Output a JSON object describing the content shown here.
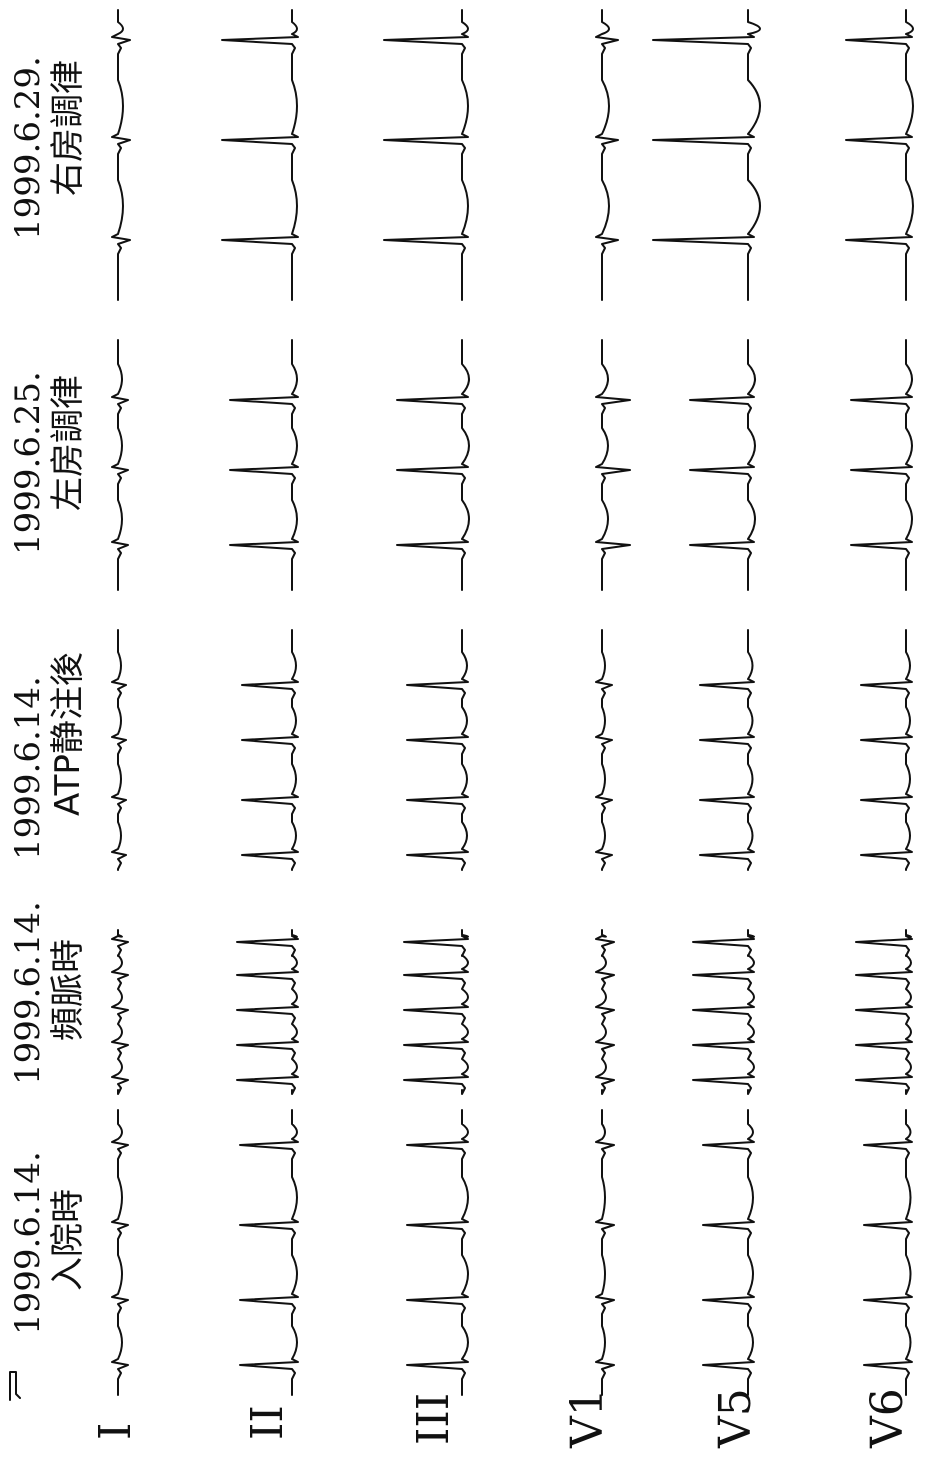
{
  "columns": [
    {
      "date": "1999.6.14.",
      "desc": "入院時",
      "rhythm": {
        "hr": 4,
        "type": "sinus"
      }
    },
    {
      "date": "1999.6.14.",
      "desc": "頻脈時",
      "rhythm": {
        "hr": 7,
        "type": "tachy"
      }
    },
    {
      "date": "1999.6.14.",
      "desc": "ATP静注後",
      "rhythm": {
        "hr": 5,
        "type": "post_atp"
      }
    },
    {
      "date": "1999.6.25.",
      "desc": "左房調律",
      "rhythm": {
        "hr": 4,
        "type": "left_atrial"
      }
    },
    {
      "date": "1999.6.29.",
      "desc": "右房調律",
      "rhythm": {
        "hr": 3,
        "type": "right_atrial"
      }
    }
  ],
  "leads": [
    {
      "name": "I"
    },
    {
      "name": "II"
    },
    {
      "name": "III"
    },
    {
      "name": "V1"
    },
    {
      "name": "V5"
    },
    {
      "name": "V6"
    }
  ],
  "calibration_mark": "calibration-pulse"
}
